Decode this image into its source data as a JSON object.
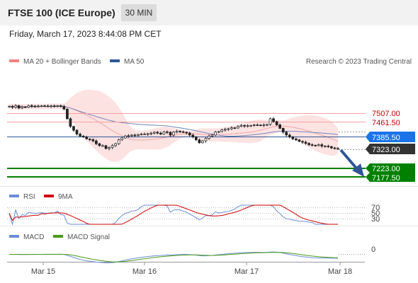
{
  "header": {
    "title": "FTSE 100 (ICE Europe)",
    "timeframe": "30 MIN",
    "datetime": "Friday, March 17, 2023 8:44:08 PM CET"
  },
  "copyright": "Research © 2023 Trading Central",
  "colors": {
    "bollinger": "#f08080",
    "ma50": "#2f5597",
    "resistance": "#e06060",
    "pivot": "#2f5597",
    "support": "#008000",
    "price_tag": "#333333",
    "pivot_tag": "#1a73e8",
    "support_tag": "#008000",
    "rsi": "#6b8dd6",
    "rsi_signal": "#cc0000",
    "macd": "#6b8dd6",
    "macd_signal": "#4a9a1a",
    "arrow": "#2f5597"
  },
  "chart_data": [
    {
      "type": "candlestick",
      "legend": [
        {
          "label": "MA 20 + Bollinger Bands",
          "color": "#f08080"
        },
        {
          "label": "MA 50",
          "color": "#2f5597"
        }
      ],
      "x_labels": [
        "Mar 15",
        "Mar 16",
        "Mar 17",
        "Mar 18"
      ],
      "ylim": [
        7150,
        7570
      ],
      "levels": {
        "resistance": [
          "7507.00",
          "7461.50"
        ],
        "pivot": "7385.50",
        "current": "7323.00",
        "support": [
          "7223.00",
          "7177.50"
        ]
      },
      "closes": [
        7545,
        7540,
        7548,
        7536,
        7542,
        7540,
        7548,
        7546,
        7545,
        7546,
        7547,
        7546,
        7545,
        7547,
        7546,
        7548,
        7544,
        7530,
        7480,
        7440,
        7420,
        7400,
        7390,
        7385,
        7375,
        7372,
        7365,
        7350,
        7340,
        7340,
        7325,
        7330,
        7340,
        7350,
        7370,
        7380,
        7390,
        7392,
        7395,
        7393,
        7398,
        7400,
        7400,
        7402,
        7405,
        7410,
        7405,
        7400,
        7412,
        7410,
        7395,
        7410,
        7415,
        7412,
        7410,
        7406,
        7395,
        7385,
        7370,
        7355,
        7365,
        7378,
        7390,
        7395,
        7410,
        7413,
        7422,
        7425,
        7428,
        7433,
        7432,
        7440,
        7445,
        7442,
        7444,
        7445,
        7448,
        7447,
        7446,
        7449,
        7450,
        7480,
        7465,
        7448,
        7430,
        7410,
        7395,
        7385,
        7375,
        7370,
        7362,
        7358,
        7352,
        7345,
        7342,
        7340,
        7345,
        7338,
        7338,
        7335,
        7328,
        7325,
        7323
      ]
    },
    {
      "type": "line",
      "legend": [
        {
          "label": "RSI",
          "color": "#6b8dd6"
        },
        {
          "label": "9MA",
          "color": "#cc0000"
        }
      ],
      "levels": [
        "70",
        "50",
        "30"
      ],
      "ylim": [
        20,
        80
      ]
    },
    {
      "type": "line",
      "legend": [
        {
          "label": "MACD",
          "color": "#6b8dd6"
        },
        {
          "label": "MACD Signal",
          "color": "#4a9a1a"
        }
      ],
      "levels": [
        "0"
      ]
    }
  ]
}
